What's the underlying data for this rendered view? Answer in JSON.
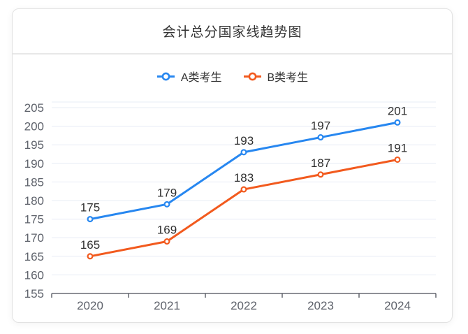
{
  "card": {
    "title": "会计总分国家线趋势图"
  },
  "colors": {
    "series_a_blue": "#2787F0",
    "series_b_orange": "#F25A1E",
    "grid_line": "#E7ECF6",
    "axis_line": "#4A4E57",
    "axis_label": "#5E626B",
    "data_label": "#2E2E2E"
  },
  "chart_data": {
    "type": "line",
    "title": "会计总分国家线趋势图",
    "categories": [
      "2020",
      "2021",
      "2022",
      "2023",
      "2024"
    ],
    "series": [
      {
        "name": "A类考生",
        "color": "#2787F0",
        "values": [
          175,
          179,
          193,
          197,
          201
        ]
      },
      {
        "name": "B类考生",
        "color": "#F25A1E",
        "values": [
          165,
          169,
          183,
          187,
          191
        ]
      }
    ],
    "xlabel": "",
    "ylabel": "",
    "ylim": [
      155,
      205
    ],
    "y_ticks": [
      155,
      160,
      165,
      170,
      175,
      180,
      185,
      190,
      195,
      200,
      205
    ],
    "grid": true,
    "legend_position": "top",
    "data_labels": true
  }
}
